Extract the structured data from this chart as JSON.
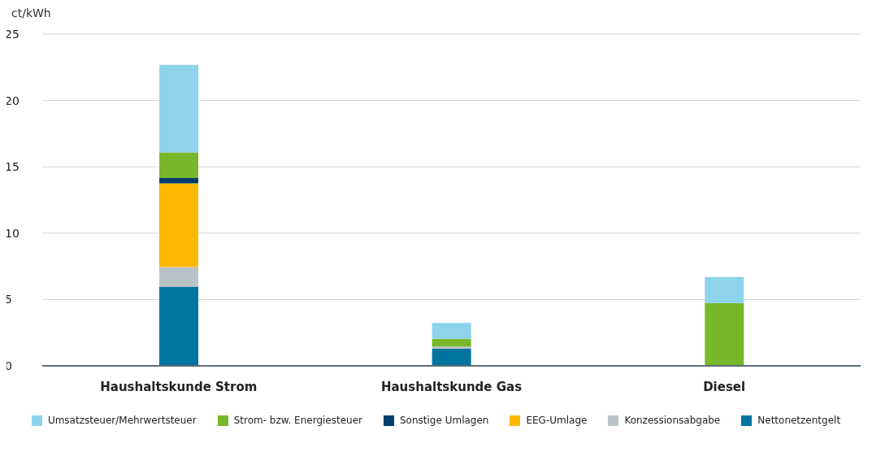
{
  "chart_data": {
    "type": "bar",
    "stacked": true,
    "ylabel": "ct/kWh",
    "categories": [
      "Haushaltskunde Strom",
      "Haushaltskunde Gas",
      "Diesel"
    ],
    "series": [
      {
        "name": "Nettonetzentgelt",
        "color": "#0075a0",
        "values": [
          5.95,
          1.28,
          null
        ]
      },
      {
        "name": "Konzessionsabgabe",
        "color": "#b8c3c7",
        "values": [
          1.5,
          0.17,
          null
        ]
      },
      {
        "name": "EEG-Umlage",
        "color": "#fab900",
        "values": [
          6.3,
          null,
          null
        ]
      },
      {
        "name": "Sonstige Umlagen",
        "color": "#003e6e",
        "values": [
          0.4,
          null,
          null
        ]
      },
      {
        "name": "Strom- bzw. Energiesteuer",
        "color": "#78b72a",
        "values": [
          1.93,
          0.59,
          4.74
        ]
      },
      {
        "name": "Umsatzsteuer/Mehrwertsteuer",
        "color": "#8dd3ec",
        "values": [
          6.6,
          1.19,
          1.96
        ]
      }
    ],
    "ylim": [
      0,
      25
    ],
    "yticks": [
      0,
      5,
      10,
      15,
      20,
      25
    ],
    "grid": "y",
    "legend": "bottom"
  }
}
